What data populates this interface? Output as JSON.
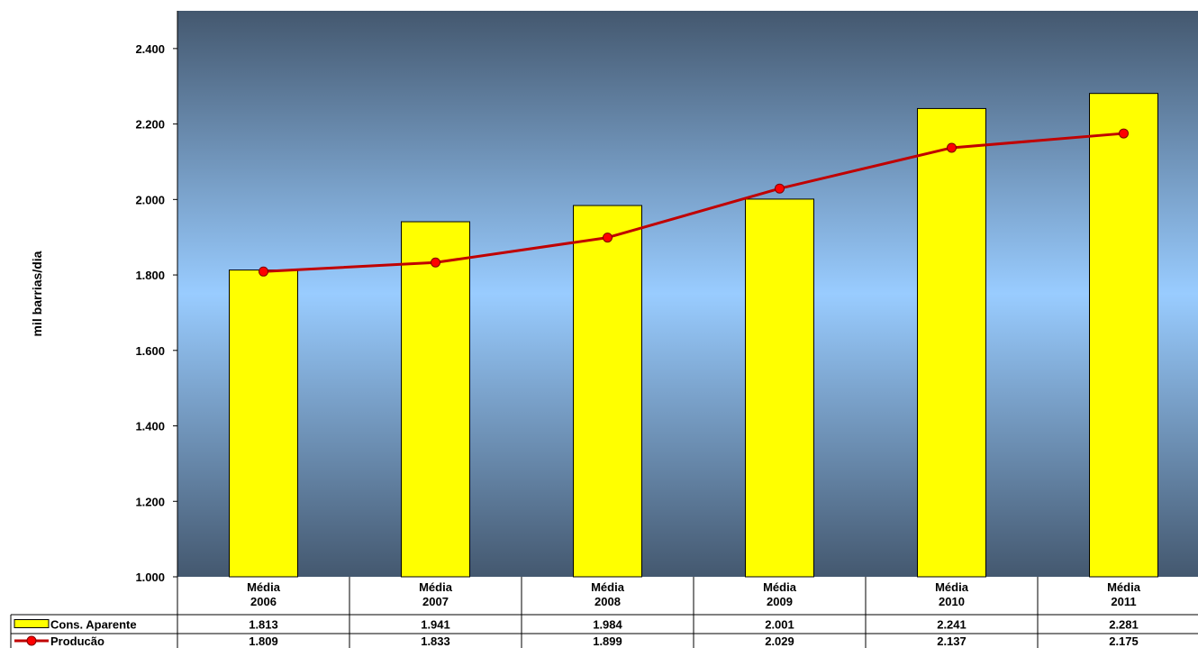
{
  "chart_data": {
    "type": "bar",
    "ylabel": "mil barrias/dia",
    "ylim": [
      1000,
      2500
    ],
    "yticks": [
      1000,
      1200,
      1400,
      1600,
      1800,
      2000,
      2200,
      2400
    ],
    "ytick_labels": [
      "1.000",
      "1.200",
      "1.400",
      "1.600",
      "1.800",
      "2.000",
      "2.200",
      "2.400"
    ],
    "categories": [
      [
        "Média",
        "2006"
      ],
      [
        "Média",
        "2007"
      ],
      [
        "Média",
        "2008"
      ],
      [
        "Média",
        "2009"
      ],
      [
        "Média",
        "2010"
      ],
      [
        "Média",
        "2011"
      ]
    ],
    "series": [
      {
        "name": "Cons. Aparente",
        "type": "bar",
        "color": "#ffff00",
        "values": [
          1813,
          1941,
          1984,
          2001,
          2241,
          2281
        ],
        "labels": [
          "1.813",
          "1.941",
          "1.984",
          "2.001",
          "2.241",
          "2.281"
        ]
      },
      {
        "name": "Producão",
        "type": "line",
        "color": "#c00000",
        "marker_color": "#ff0000",
        "values": [
          1809,
          1833,
          1899,
          2029,
          2137,
          2175
        ],
        "labels": [
          "1.809",
          "1.833",
          "1.899",
          "2.029",
          "2.137",
          "2.175"
        ]
      }
    ],
    "grid": false,
    "data_table": true,
    "background_gradient": [
      "#44586f",
      "#99ccff",
      "#44586f"
    ]
  }
}
